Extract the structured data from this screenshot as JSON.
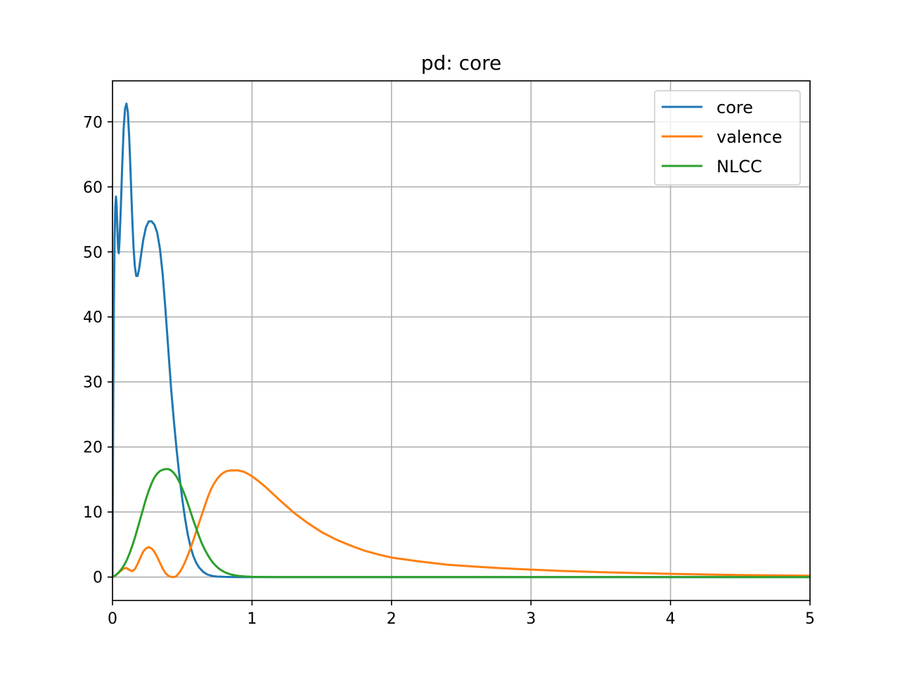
{
  "colors": {
    "core": "#1f77b4",
    "valence": "#ff7f0e",
    "nlcc": "#2ca02c",
    "grid": "#b0b0b0"
  },
  "chart_data": {
    "type": "line",
    "title": "pd: core",
    "xlabel": "",
    "ylabel": "",
    "xlim": [
      0,
      5
    ],
    "ylim": [
      -3.6,
      76.3
    ],
    "grid": true,
    "legend_position": "top-right",
    "x_ticks": [
      0,
      1,
      2,
      3,
      4,
      5
    ],
    "x_tick_labels": [
      "0",
      "1",
      "2",
      "3",
      "4",
      "5"
    ],
    "y_ticks": [
      0,
      10,
      20,
      30,
      40,
      50,
      60,
      70
    ],
    "y_tick_labels": [
      "0",
      "10",
      "20",
      "30",
      "40",
      "50",
      "60",
      "70"
    ],
    "series": [
      {
        "name": "core",
        "color": "#1f77b4",
        "x": [
          0,
          0.005,
          0.01,
          0.015,
          0.02,
          0.025,
          0.03,
          0.035,
          0.04,
          0.045,
          0.05,
          0.06,
          0.07,
          0.08,
          0.09,
          0.1,
          0.11,
          0.12,
          0.13,
          0.14,
          0.15,
          0.16,
          0.17,
          0.18,
          0.19,
          0.2,
          0.22,
          0.24,
          0.26,
          0.28,
          0.3,
          0.32,
          0.34,
          0.36,
          0.38,
          0.4,
          0.42,
          0.44,
          0.46,
          0.48,
          0.5,
          0.52,
          0.54,
          0.56,
          0.58,
          0.6,
          0.62,
          0.65,
          0.68,
          0.7,
          0.72,
          0.75,
          0.8,
          0.85,
          0.9,
          0.95,
          1.0,
          1.1,
          1.2,
          1.5,
          2.0,
          3.0,
          4.0,
          5.0
        ],
        "values": [
          0,
          25,
          42,
          52,
          57,
          58.5,
          57,
          53.5,
          50.5,
          49.8,
          51.5,
          57,
          63.5,
          69,
          72,
          72.8,
          71.5,
          67.5,
          62,
          56,
          51,
          47.8,
          46.3,
          46.3,
          47.3,
          48.8,
          51.8,
          53.8,
          54.7,
          54.7,
          54.2,
          53,
          50.5,
          46.5,
          41,
          35,
          29,
          24,
          19.5,
          15.5,
          12,
          9,
          6.5,
          4.6,
          3.2,
          2.2,
          1.5,
          0.8,
          0.4,
          0.25,
          0.15,
          0.08,
          0.03,
          0.01,
          0,
          0,
          0,
          0,
          0,
          0,
          0,
          0,
          0,
          0
        ]
      },
      {
        "name": "valence",
        "color": "#ff7f0e",
        "x": [
          0,
          0.02,
          0.05,
          0.08,
          0.1,
          0.12,
          0.14,
          0.16,
          0.18,
          0.2,
          0.22,
          0.24,
          0.26,
          0.28,
          0.3,
          0.32,
          0.34,
          0.36,
          0.38,
          0.4,
          0.42,
          0.44,
          0.45,
          0.46,
          0.48,
          0.5,
          0.52,
          0.55,
          0.58,
          0.6,
          0.62,
          0.65,
          0.68,
          0.7,
          0.72,
          0.75,
          0.78,
          0.8,
          0.82,
          0.85,
          0.88,
          0.9,
          0.92,
          0.94,
          0.96,
          1.0,
          1.05,
          1.1,
          1.15,
          1.2,
          1.3,
          1.4,
          1.5,
          1.6,
          1.7,
          1.8,
          1.9,
          2.0,
          2.2,
          2.4,
          2.6,
          2.8,
          3.0,
          3.2,
          3.5,
          4.0,
          4.5,
          5.0
        ],
        "values": [
          0,
          0.2,
          0.8,
          1.3,
          1.4,
          1.1,
          0.9,
          1.2,
          2.0,
          3.0,
          3.9,
          4.4,
          4.6,
          4.4,
          3.9,
          3.1,
          2.2,
          1.3,
          0.6,
          0.2,
          0.02,
          0.0,
          0.05,
          0.2,
          0.7,
          1.4,
          2.3,
          3.9,
          5.7,
          7.0,
          8.3,
          10.2,
          12.1,
          13.2,
          14.1,
          15.1,
          15.8,
          16.1,
          16.3,
          16.4,
          16.4,
          16.4,
          16.3,
          16.2,
          16.0,
          15.5,
          14.7,
          13.8,
          12.8,
          11.8,
          9.9,
          8.3,
          6.9,
          5.8,
          4.9,
          4.1,
          3.5,
          3.0,
          2.4,
          1.9,
          1.6,
          1.35,
          1.15,
          0.95,
          0.75,
          0.5,
          0.3,
          0.2
        ]
      },
      {
        "name": "NLCC",
        "color": "#2ca02c",
        "x": [
          0,
          0.02,
          0.04,
          0.06,
          0.08,
          0.1,
          0.12,
          0.14,
          0.16,
          0.18,
          0.2,
          0.22,
          0.24,
          0.26,
          0.28,
          0.3,
          0.32,
          0.34,
          0.36,
          0.38,
          0.4,
          0.42,
          0.44,
          0.46,
          0.48,
          0.5,
          0.52,
          0.54,
          0.56,
          0.58,
          0.6,
          0.62,
          0.64,
          0.66,
          0.68,
          0.7,
          0.72,
          0.74,
          0.76,
          0.78,
          0.8,
          0.82,
          0.85,
          0.88,
          0.9,
          0.95,
          1.0,
          1.05,
          1.1,
          1.2,
          1.3,
          1.5,
          2.0,
          3.0,
          4.0,
          5.0
        ],
        "values": [
          0,
          0.25,
          0.6,
          1.1,
          1.7,
          2.5,
          3.5,
          4.7,
          6.0,
          7.5,
          9.0,
          10.5,
          12.0,
          13.3,
          14.4,
          15.3,
          15.9,
          16.3,
          16.5,
          16.6,
          16.6,
          16.4,
          16.0,
          15.4,
          14.6,
          13.6,
          12.5,
          11.3,
          10.0,
          8.7,
          7.5,
          6.3,
          5.2,
          4.3,
          3.5,
          2.8,
          2.2,
          1.75,
          1.35,
          1.05,
          0.8,
          0.6,
          0.4,
          0.25,
          0.18,
          0.09,
          0.04,
          0.02,
          0.01,
          0,
          0,
          0,
          0,
          0,
          0,
          0
        ]
      }
    ]
  }
}
